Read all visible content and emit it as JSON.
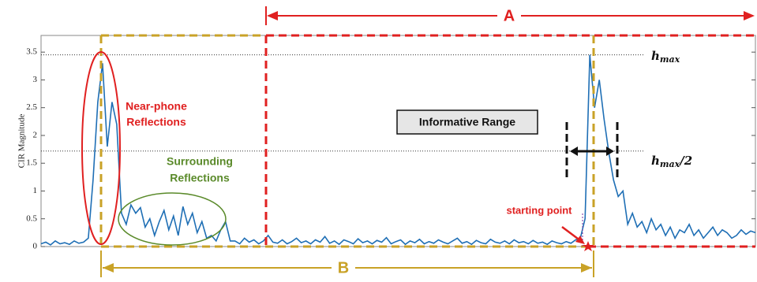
{
  "chart_data": {
    "type": "line",
    "y_label": "CIR Magnitude",
    "ylim": [
      0,
      3.8
    ],
    "yticks": [
      0,
      0.5,
      1,
      1.5,
      2,
      2.5,
      3,
      3.5
    ],
    "series": [
      {
        "color": "#1f6fb5",
        "values": [
          0.05,
          0.08,
          0.03,
          0.1,
          0.05,
          0.07,
          0.04,
          0.1,
          0.06,
          0.08,
          0.15,
          1.2,
          2.6,
          3.3,
          1.8,
          2.6,
          2.2,
          0.6,
          0.4,
          0.75,
          0.6,
          0.7,
          0.35,
          0.5,
          0.2,
          0.45,
          0.65,
          0.3,
          0.55,
          0.2,
          0.72,
          0.4,
          0.6,
          0.25,
          0.45,
          0.15,
          0.2,
          0.1,
          0.3,
          0.45,
          0.1,
          0.1,
          0.05,
          0.15,
          0.08,
          0.12,
          0.05,
          0.1,
          0.2,
          0.08,
          0.06,
          0.12,
          0.05,
          0.09,
          0.15,
          0.07,
          0.1,
          0.05,
          0.12,
          0.08,
          0.18,
          0.06,
          0.1,
          0.04,
          0.12,
          0.09,
          0.05,
          0.14,
          0.07,
          0.1,
          0.05,
          0.11,
          0.08,
          0.16,
          0.05,
          0.09,
          0.12,
          0.04,
          0.1,
          0.07,
          0.13,
          0.05,
          0.09,
          0.06,
          0.12,
          0.08,
          0.05,
          0.1,
          0.15,
          0.06,
          0.09,
          0.04,
          0.11,
          0.07,
          0.05,
          0.13,
          0.08,
          0.06,
          0.1,
          0.05,
          0.12,
          0.07,
          0.09,
          0.05,
          0.11,
          0.06,
          0.08,
          0.04,
          0.1,
          0.07,
          0.05,
          0.09,
          0.06,
          0.12,
          0.15,
          0.5,
          3.45,
          2.5,
          3.0,
          2.3,
          1.7,
          1.2,
          0.9,
          1.0,
          0.4,
          0.6,
          0.35,
          0.45,
          0.25,
          0.5,
          0.3,
          0.4,
          0.2,
          0.35,
          0.15,
          0.3,
          0.25,
          0.4,
          0.2,
          0.3,
          0.15,
          0.25,
          0.35,
          0.2,
          0.3,
          0.25,
          0.15,
          0.2,
          0.3,
          0.22,
          0.28,
          0.25
        ]
      }
    ],
    "h_max": {
      "value": 3.45,
      "base": "h",
      "sub": "max"
    },
    "h_half": {
      "value": 1.72,
      "base": "h",
      "sub": "max",
      "suffix": "/2"
    },
    "annotations": {
      "A": "A",
      "B": "B",
      "near_phone": [
        "Near-phone",
        "Reflections"
      ],
      "surrounding": [
        "Surrounding",
        "Reflections"
      ],
      "informative": "Informative Range",
      "starting_point": "starting point"
    }
  }
}
